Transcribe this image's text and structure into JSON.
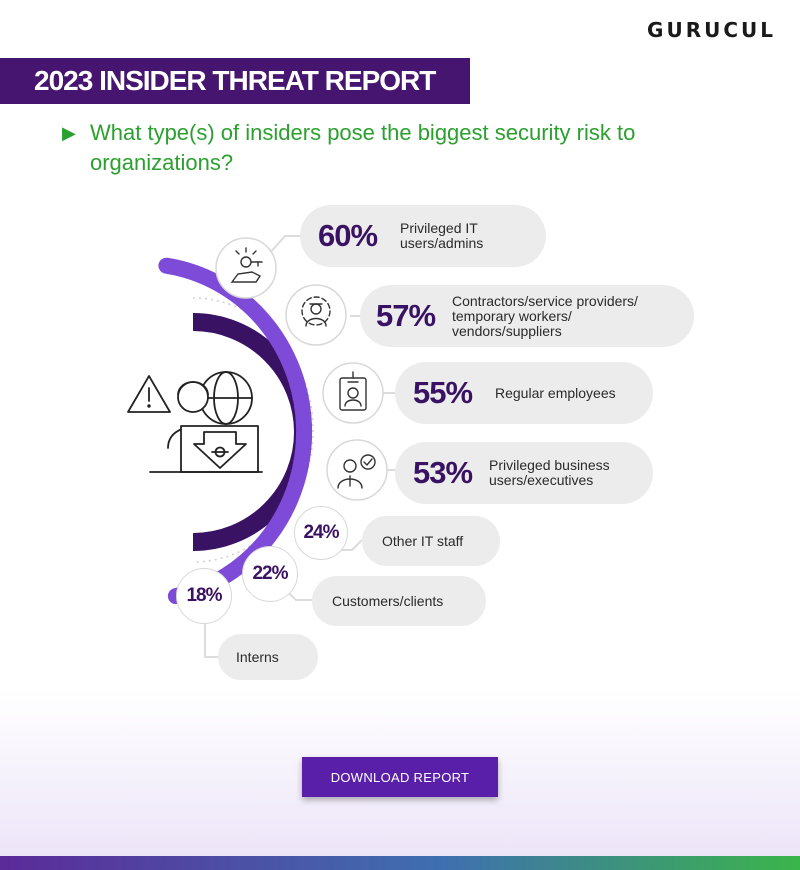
{
  "brand": {
    "logo": "GURUCUL"
  },
  "banner": {
    "title": "2023 INSIDER THREAT REPORT"
  },
  "question": "What type(s) of insiders pose the biggest security risk to organizations?",
  "cta": {
    "label": "DOWNLOAD REPORT"
  },
  "colors": {
    "accent": "#46156f",
    "arc": "#7e4ad8",
    "question": "#2ba02f",
    "button": "#5a1fa8"
  },
  "chart_data": {
    "type": "bar",
    "title": "What type(s) of insiders pose the biggest security risk to organizations?",
    "categories": [
      "Privileged IT users/admins",
      "Contractors/service providers/ temporary workers/ vendors/suppliers",
      "Regular employees",
      "Privileged business users/executives",
      "Other IT staff",
      "Customers/clients",
      "Interns"
    ],
    "values": [
      60,
      57,
      55,
      53,
      24,
      22,
      18
    ],
    "unit": "%",
    "items": [
      {
        "pct": "60%",
        "label_lines": [
          "Privileged IT",
          "users/admins"
        ],
        "icon": "key-hand-icon"
      },
      {
        "pct": "57%",
        "label_lines": [
          "Contractors/service providers/",
          "temporary workers/",
          "vendors/suppliers"
        ],
        "icon": "worker-gear-icon"
      },
      {
        "pct": "55%",
        "label_lines": [
          "Regular employees"
        ],
        "icon": "id-badge-icon"
      },
      {
        "pct": "53%",
        "label_lines": [
          "Privileged business",
          "users/executives"
        ],
        "icon": "executive-check-icon"
      },
      {
        "pct": "24%",
        "label_lines": [
          "Other IT staff"
        ]
      },
      {
        "pct": "22%",
        "label_lines": [
          "Customers/clients"
        ]
      },
      {
        "pct": "18%",
        "label_lines": [
          "Interns"
        ]
      }
    ]
  }
}
